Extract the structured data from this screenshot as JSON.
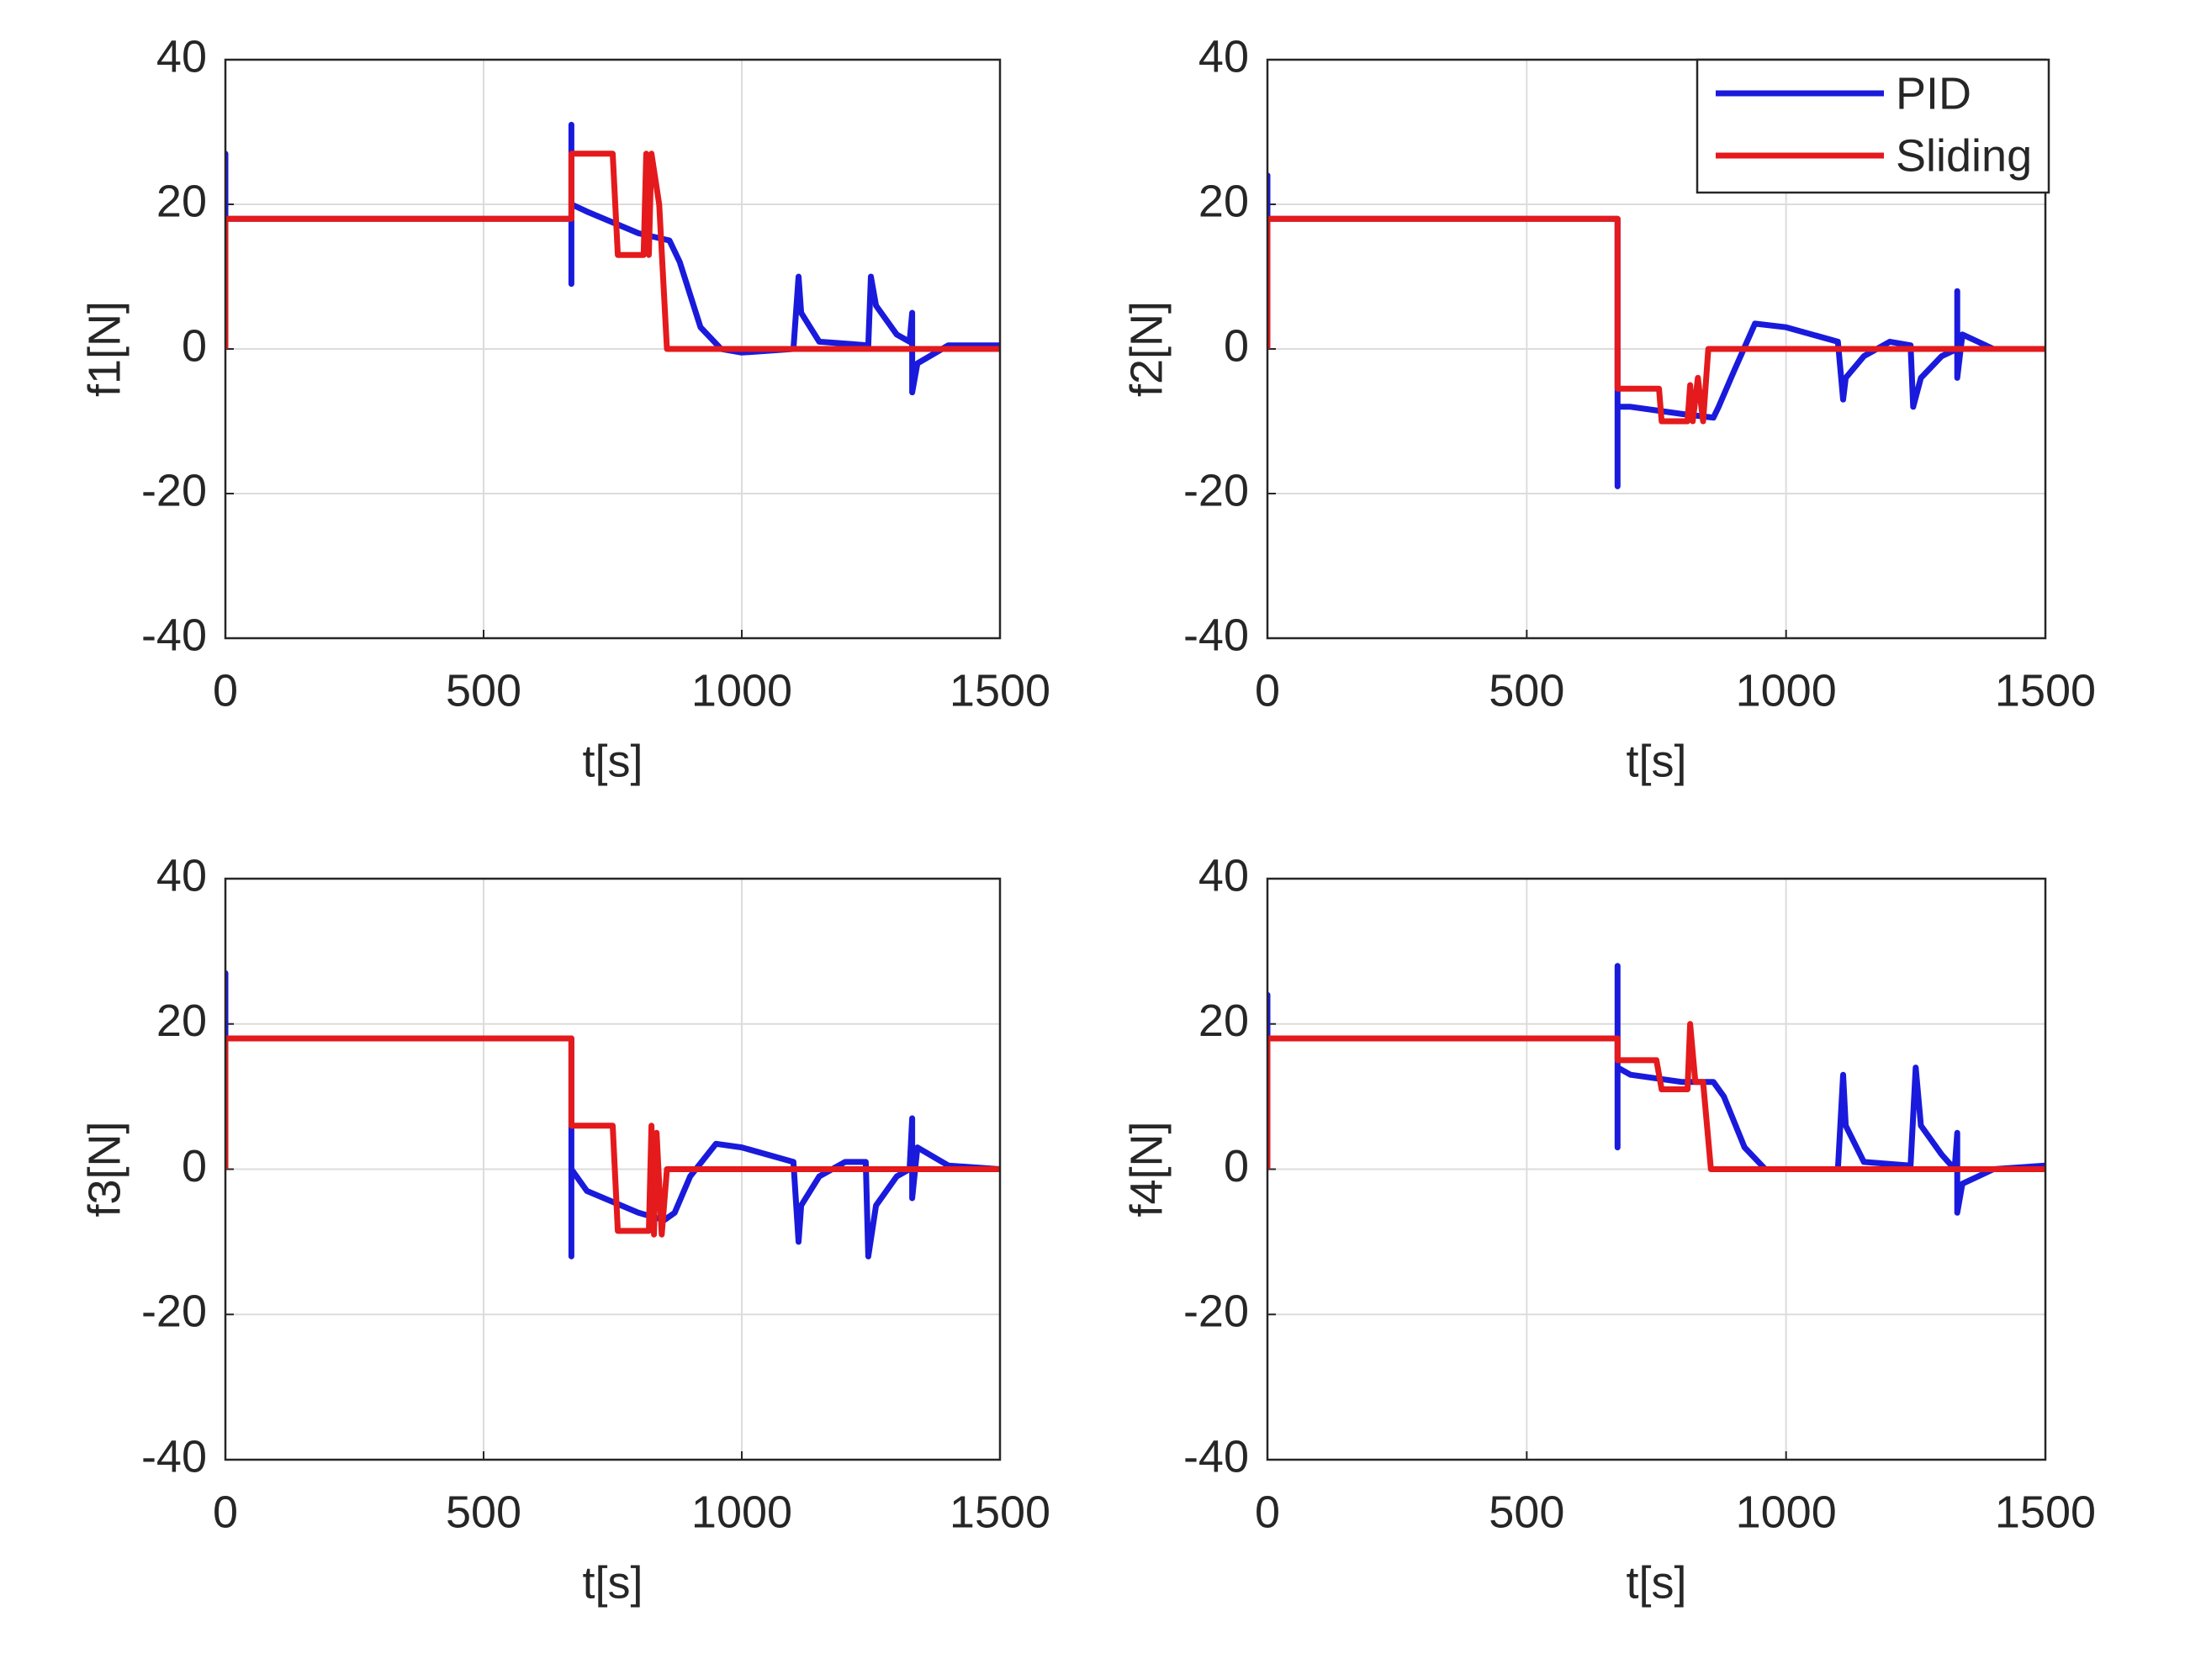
{
  "chart_data": [
    {
      "type": "line",
      "xlabel": "t[s]",
      "ylabel": "f1[N]",
      "xlim": [
        0,
        1500
      ],
      "ylim": [
        -40,
        40
      ],
      "xticks": [
        0,
        500,
        1000,
        1500
      ],
      "yticks": [
        -40,
        -20,
        0,
        20,
        40
      ],
      "grid": true,
      "series": [
        {
          "color": "#1a1adc",
          "x": [
            0,
            0,
            0,
            670,
            670,
            670,
            670,
            700,
            800,
            860,
            880,
            920,
            960,
            1000,
            1100,
            1110,
            1115,
            1150,
            1245,
            1250,
            1260,
            1300,
            1325,
            1330,
            1330,
            1340,
            1400,
            1500
          ],
          "values": [
            0,
            27,
            18,
            18,
            31,
            9,
            20,
            19,
            16,
            15,
            12,
            3,
            0,
            -0.5,
            0,
            10,
            5,
            1,
            0.5,
            10,
            6,
            2,
            1,
            5,
            -6,
            -2,
            0.5,
            0.5
          ]
        },
        {
          "color": "#e41a1c",
          "x": [
            0,
            0,
            670,
            670,
            750,
            760,
            810,
            815,
            820,
            825,
            840,
            855,
            1500
          ],
          "values": [
            0,
            18,
            18,
            27,
            27,
            13,
            13,
            27,
            13,
            27,
            20,
            0,
            0
          ]
        }
      ]
    },
    {
      "type": "line",
      "xlabel": "t[s]",
      "ylabel": "f2[N]",
      "xlim": [
        0,
        1500
      ],
      "ylim": [
        -40,
        40
      ],
      "xticks": [
        0,
        500,
        1000,
        1500
      ],
      "yticks": [
        -40,
        -20,
        0,
        20,
        40
      ],
      "grid": true,
      "legend": "upper right",
      "series": [
        {
          "name": "PID",
          "color": "#1a1adc",
          "x": [
            0,
            0,
            0,
            675,
            675,
            675,
            675,
            700,
            800,
            860,
            870,
            900,
            940,
            1000,
            1100,
            1110,
            1115,
            1150,
            1200,
            1240,
            1245,
            1260,
            1300,
            1330,
            1330,
            1330,
            1340,
            1400,
            1500
          ],
          "values": [
            0,
            24,
            18,
            18,
            -6,
            -19,
            -8,
            -8,
            -9,
            -9.5,
            -8,
            -3,
            3.5,
            3,
            1,
            -7,
            -4,
            -1,
            1,
            0.5,
            -8,
            -4,
            -1,
            0,
            8,
            -4,
            2,
            0,
            0
          ]
        },
        {
          "name": "Sliding",
          "color": "#e41a1c",
          "x": [
            0,
            0,
            675,
            675,
            755,
            760,
            810,
            815,
            820,
            830,
            840,
            850,
            1500
          ],
          "values": [
            0,
            18,
            18,
            -5.5,
            -5.5,
            -10,
            -10,
            -5,
            -10,
            -4,
            -10,
            0,
            0
          ]
        }
      ]
    },
    {
      "type": "line",
      "xlabel": "t[s]",
      "ylabel": "f3[N]",
      "xlim": [
        0,
        1500
      ],
      "ylim": [
        -40,
        40
      ],
      "xticks": [
        0,
        500,
        1000,
        1500
      ],
      "yticks": [
        -40,
        -20,
        0,
        20,
        40
      ],
      "grid": true,
      "series": [
        {
          "color": "#1a1adc",
          "x": [
            0,
            0,
            0,
            670,
            670,
            670,
            700,
            800,
            850,
            870,
            900,
            950,
            1000,
            1100,
            1110,
            1115,
            1150,
            1200,
            1240,
            1245,
            1260,
            1300,
            1325,
            1330,
            1330,
            1340,
            1400,
            1500
          ],
          "values": [
            0,
            27,
            18,
            18,
            -12,
            0,
            -3,
            -6,
            -7,
            -6,
            -1,
            3.5,
            3,
            1,
            -10,
            -5,
            -1,
            1,
            1,
            -12,
            -5,
            -1,
            0,
            7,
            -4,
            3,
            0.5,
            0
          ]
        },
        {
          "color": "#e41a1c",
          "x": [
            0,
            0,
            670,
            670,
            750,
            760,
            820,
            825,
            830,
            835,
            845,
            855,
            1500
          ],
          "values": [
            0,
            18,
            18,
            6,
            6,
            -8.5,
            -8.5,
            6,
            -9,
            5,
            -9,
            0,
            0
          ]
        }
      ]
    },
    {
      "type": "line",
      "xlabel": "t[s]",
      "ylabel": "f4[N]",
      "xlim": [
        0,
        1500
      ],
      "ylim": [
        -40,
        40
      ],
      "xticks": [
        0,
        500,
        1000,
        1500
      ],
      "yticks": [
        -40,
        -20,
        0,
        20,
        40
      ],
      "grid": true,
      "series": [
        {
          "color": "#1a1adc",
          "x": [
            0,
            0,
            0,
            675,
            675,
            675,
            675,
            700,
            800,
            860,
            880,
            920,
            960,
            1000,
            1100,
            1110,
            1115,
            1150,
            1240,
            1250,
            1260,
            1300,
            1325,
            1330,
            1330,
            1340,
            1400,
            1500
          ],
          "values": [
            0,
            24,
            18,
            18,
            28,
            3,
            14,
            13,
            12,
            12,
            10,
            3,
            0,
            0,
            0,
            13,
            6,
            1,
            0.5,
            14,
            6,
            2,
            0,
            5,
            -6,
            -2,
            0,
            0.5
          ]
        },
        {
          "color": "#e41a1c",
          "x": [
            0,
            0,
            675,
            675,
            750,
            760,
            810,
            815,
            825,
            840,
            855,
            1500
          ],
          "values": [
            0,
            18,
            18,
            15,
            15,
            11,
            11,
            20,
            12,
            12,
            0,
            0
          ]
        }
      ]
    }
  ]
}
